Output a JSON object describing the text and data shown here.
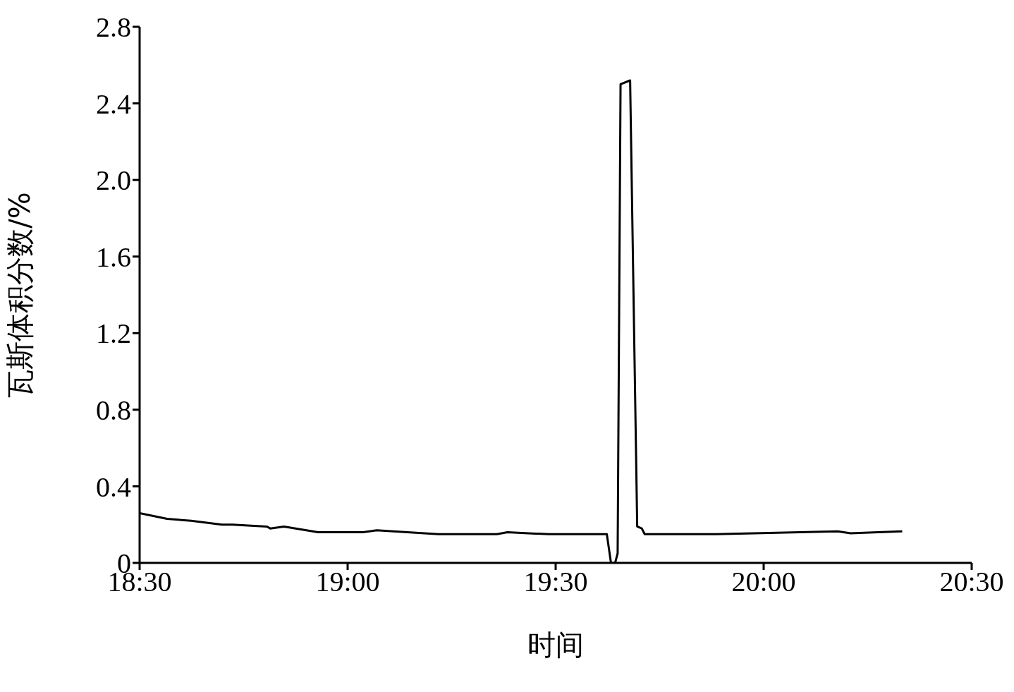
{
  "chart_data": {
    "type": "line",
    "xlabel": "时间",
    "ylabel": "瓦斯体积分数/%",
    "x": [
      18.5,
      18.566,
      18.624,
      18.698,
      18.723,
      18.806,
      18.814,
      18.847,
      18.929,
      19.012,
      19.037,
      19.07,
      19.218,
      19.359,
      19.384,
      19.483,
      19.532,
      19.607,
      19.623,
      19.633,
      19.643,
      19.649,
      19.656,
      19.679,
      19.696,
      19.707,
      19.714,
      19.879,
      20.178,
      20.209,
      20.275,
      20.333
    ],
    "series": [
      {
        "color": "#000000",
        "values": [
          0.26,
          0.23,
          0.22,
          0.2,
          0.2,
          0.19,
          0.18,
          0.19,
          0.16,
          0.16,
          0.16,
          0.17,
          0.15,
          0.15,
          0.16,
          0.15,
          0.15,
          0.15,
          0.15,
          0,
          0,
          0.05,
          2.5,
          2.52,
          0.19,
          0.18,
          0.15,
          0.15,
          0.165,
          0.155,
          0.16,
          0.165
        ]
      }
    ],
    "xlim": [
      18.5,
      20.5
    ],
    "xticks": [
      {
        "value": 18.5,
        "label": "18:30"
      },
      {
        "value": 19,
        "label": "19:00"
      },
      {
        "value": 19.5,
        "label": "19:30"
      },
      {
        "value": 20,
        "label": "20:00"
      },
      {
        "value": 20.5,
        "label": "20:30"
      }
    ],
    "ylim": [
      0,
      2.8
    ],
    "yticks": [
      0,
      0.4,
      0.8,
      1.2,
      1.6,
      {
        "value": 2,
        "label": "2.0"
      },
      2.4,
      2.8
    ],
    "marker": "none",
    "line_style": "solid"
  }
}
